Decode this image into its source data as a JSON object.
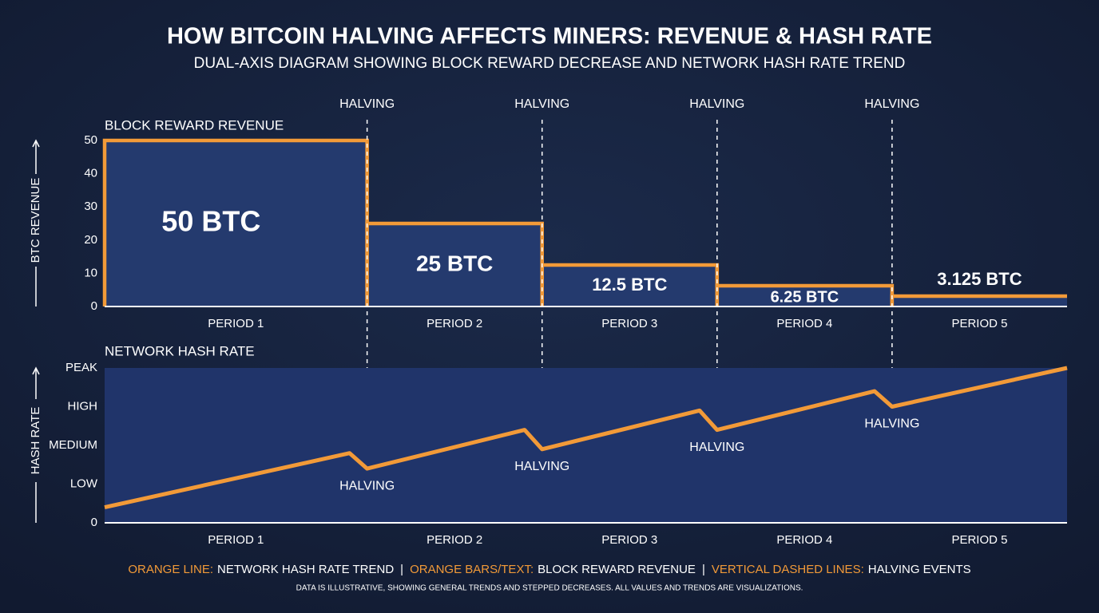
{
  "header": {
    "title": "HOW BITCOIN HALVING AFFECTS MINERS: REVENUE & HASH RATE",
    "subtitle": "DUAL-AXIS DIAGRAM SHOWING BLOCK REWARD DECREASE AND NETWORK HASH RATE TREND"
  },
  "chart_data": [
    {
      "type": "step-bar",
      "title": "BLOCK REWARD REVENUE",
      "y_label": "BTC REVENUE",
      "categories": [
        "PERIOD 1",
        "PERIOD 2",
        "PERIOD 3",
        "PERIOD 4",
        "PERIOD 5"
      ],
      "bins": [
        0,
        1.5,
        2.5,
        3.5,
        4.5,
        5.5
      ],
      "xlim": [
        0,
        5.5
      ],
      "values": [
        50,
        25,
        12.5,
        6.25,
        3.125
      ],
      "value_labels": [
        "50 BTC",
        "25 BTC",
        "12.5 BTC",
        "6.25 BTC",
        "3.125 BTC"
      ],
      "color": "#f29a38",
      "fill": "#243a6e",
      "ylim": [
        0,
        50
      ],
      "yticks": [
        0,
        10,
        20,
        30,
        40,
        50
      ],
      "annotations": [
        {
          "text": "HALVING",
          "x": 1.5
        },
        {
          "text": "HALVING",
          "x": 2.5
        },
        {
          "text": "HALVING",
          "x": 3.5
        },
        {
          "text": "HALVING",
          "x": 4.5
        }
      ]
    },
    {
      "type": "line",
      "title": "NETWORK HASH RATE",
      "y_label": "HASH RATE",
      "categories": [
        "PERIOD 1",
        "PERIOD 2",
        "PERIOD 3",
        "PERIOD 4",
        "PERIOD 5"
      ],
      "bins": [
        0,
        1.5,
        2.5,
        3.5,
        4.5,
        5.5
      ],
      "xlim": [
        0,
        5.5
      ],
      "series": [
        {
          "color": "#f29a38",
          "x": [
            0,
            1.4,
            1.5,
            2.4,
            2.5,
            3.4,
            3.5,
            4.4,
            4.5,
            5.5
          ],
          "values": [
            0.4,
            1.8,
            1.4,
            2.4,
            1.9,
            2.9,
            2.4,
            3.4,
            3.0,
            4.0
          ]
        }
      ],
      "fill": "#20346a",
      "ylim": [
        0,
        4
      ],
      "yticks": [
        0,
        {
          "value": 1,
          "label": "LOW"
        },
        {
          "value": 2,
          "label": "MEDIUM"
        },
        {
          "value": 3,
          "label": "HIGH"
        },
        {
          "value": 4,
          "label": "PEAK"
        }
      ],
      "annotations": [
        {
          "text": "HALVING",
          "x": 1.5
        },
        {
          "text": "HALVING",
          "x": 2.5
        },
        {
          "text": "HALVING",
          "x": 3.5
        },
        {
          "text": "HALVING",
          "x": 4.5
        }
      ]
    }
  ],
  "footer": {
    "legend": [
      {
        "key": "ORANGE LINE:",
        "text": "NETWORK HASH RATE TREND"
      },
      {
        "key": "ORANGE BARS/TEXT:",
        "text": "BLOCK REWARD REVENUE"
      },
      {
        "key": "VERTICAL DASHED LINES:",
        "text": "HALVING EVENTS"
      }
    ],
    "separator": "|",
    "note": "DATA IS ILLUSTRATIVE, SHOWING GENERAL TRENDS AND STEPPED DECREASES. ALL VALUES AND TRENDS ARE VISUALIZATIONS."
  }
}
